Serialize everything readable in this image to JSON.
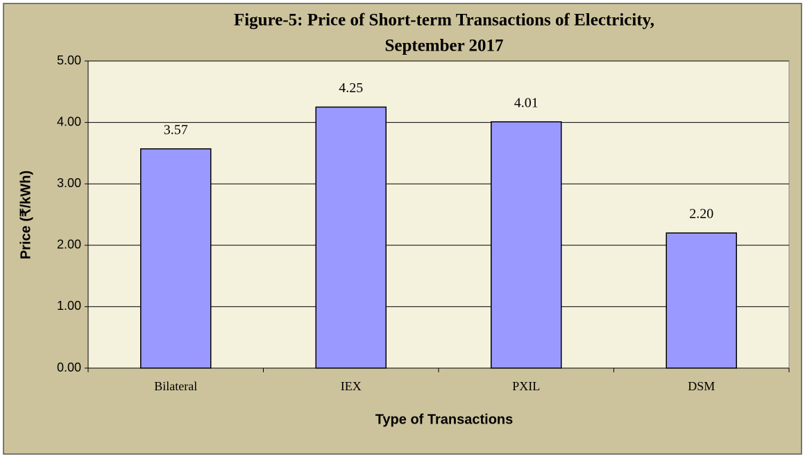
{
  "chart_data": {
    "type": "bar",
    "title": [
      "Figure-5: Price of Short-term Transactions of Electricity,",
      "September 2017"
    ],
    "xlabel": "Type of Transactions",
    "ylabel": "Price (₹/kWh)",
    "categories": [
      "Bilateral",
      "IEX",
      "PXIL",
      "DSM"
    ],
    "values": [
      3.57,
      4.25,
      4.01,
      2.2
    ],
    "value_labels": [
      "3.57",
      "4.25",
      "4.01",
      "2.20"
    ],
    "color": "#9999ff",
    "ylim": [
      0,
      5
    ],
    "yticks": [
      {
        "value": 0,
        "label": "0.00"
      },
      {
        "value": 1,
        "label": "1.00"
      },
      {
        "value": 2,
        "label": "2.00"
      },
      {
        "value": 3,
        "label": "3.00"
      },
      {
        "value": 4,
        "label": "4.00"
      },
      {
        "value": 5,
        "label": "5.00"
      }
    ],
    "grid": true
  }
}
